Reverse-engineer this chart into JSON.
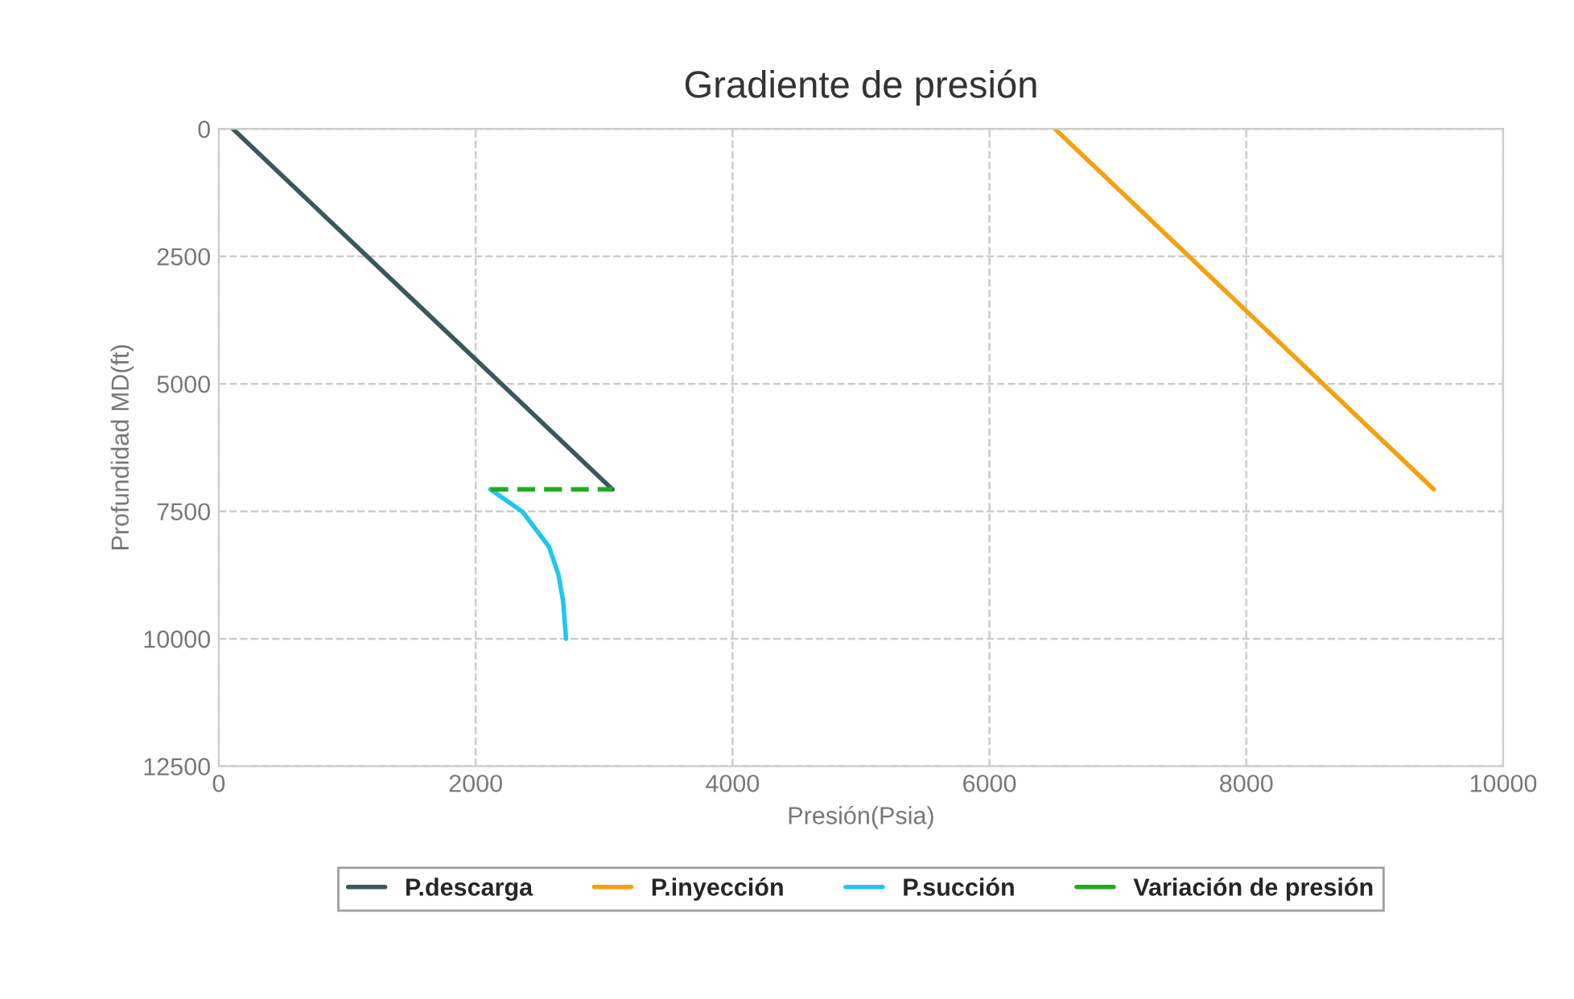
{
  "chart_data": {
    "type": "line",
    "title": "Gradiente de presión",
    "xlabel": "Presión(Psia)",
    "ylabel": "Profundidad MD(ft)",
    "xlim": [
      0,
      10000
    ],
    "xticks": [
      0,
      2000,
      4000,
      6000,
      8000,
      10000
    ],
    "ylim": [
      12500,
      0
    ],
    "yticks": [
      0,
      2500,
      5000,
      7500,
      10000,
      12500
    ],
    "grid": true,
    "legend": "bottom",
    "marker": "none",
    "series": [
      {
        "name": "P.descarga",
        "color": "#37595e",
        "x": [
          110,
          3065
        ],
        "values": [
          0,
          7070
        ],
        "line_style": "solid"
      },
      {
        "name": "P.inyección",
        "color": "#f5a00f",
        "x": [
          6510,
          9460
        ],
        "values": [
          0,
          7070
        ],
        "line_style": "solid"
      },
      {
        "name": "P.succión",
        "color": "#1ec8f0",
        "x": [
          2115,
          2365,
          2572,
          2644,
          2680,
          2704
        ],
        "values": [
          7070,
          7510,
          8200,
          8740,
          9250,
          10000
        ],
        "line_style": "solid"
      },
      {
        "name": "Variación de presión",
        "color": "#22aa22",
        "x": [
          2115,
          3065
        ],
        "values": [
          7070,
          7070
        ],
        "line_style": "dashed"
      }
    ]
  }
}
